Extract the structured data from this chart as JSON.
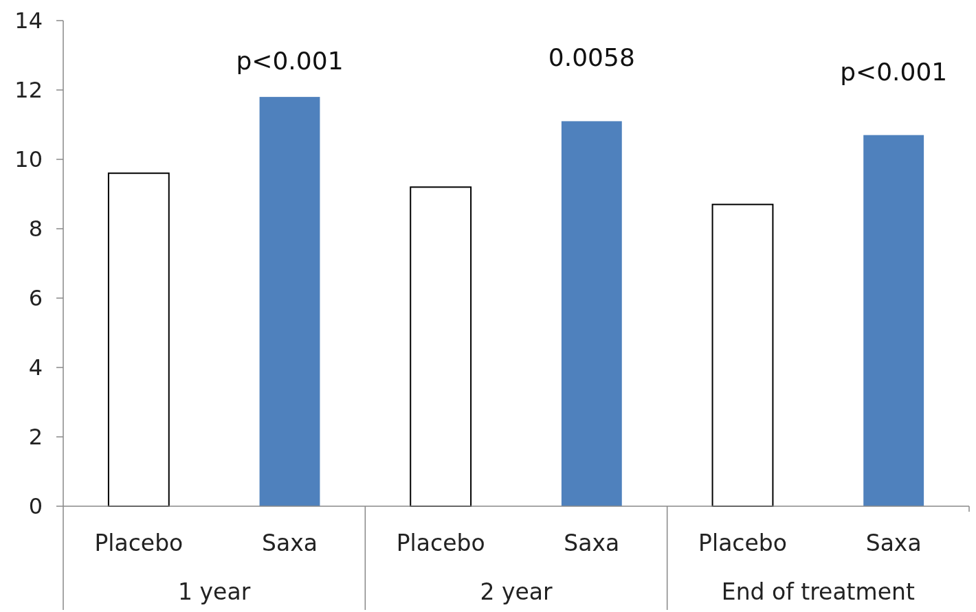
{
  "chart_data": {
    "type": "bar",
    "categories": [
      "1 year",
      "2 year",
      "End of treatment"
    ],
    "series": [
      {
        "name": "Placebo",
        "color": "#ffffff",
        "values": [
          9.6,
          9.2,
          8.7
        ]
      },
      {
        "name": "Saxa",
        "color": "#4f81bd",
        "values": [
          11.8,
          11.1,
          10.7
        ]
      }
    ],
    "ylim": [
      0,
      14
    ],
    "yticks": [
      0,
      2,
      4,
      6,
      8,
      10,
      12,
      14
    ],
    "grid": false,
    "legend": false,
    "annotations": [
      "p<0.001",
      "0.0058",
      "p<0.001"
    ]
  }
}
